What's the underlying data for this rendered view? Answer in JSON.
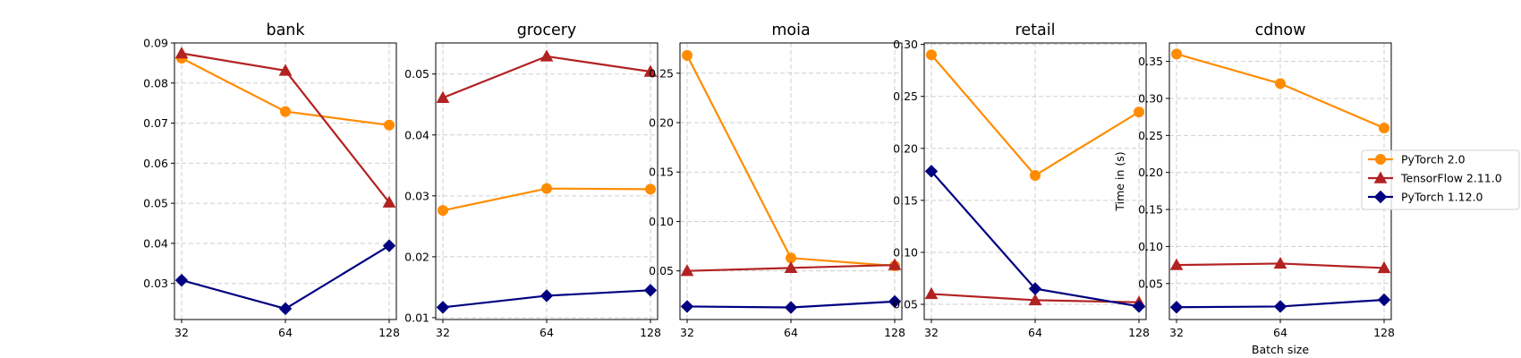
{
  "chart_data": {
    "type": "line",
    "x": [
      32,
      64,
      128
    ],
    "x_scale": "log2",
    "grid": true,
    "legend_placement": "right",
    "series_styles": [
      {
        "name": "PyTorch 2.0",
        "color": "#ff8c00",
        "marker": "circle"
      },
      {
        "name": "TensorFlow 2.11.0",
        "color": "#b22222",
        "marker": "triangle"
      },
      {
        "name": "PyTorch 1.12.0",
        "color": "#000080",
        "marker": "diamond"
      }
    ],
    "panels": [
      {
        "title": "bank",
        "xlabel": "",
        "ylabel": "",
        "ylim": [
          0.021,
          0.09
        ],
        "yticks": [
          0.03,
          0.04,
          0.05,
          0.06,
          0.07,
          0.08,
          0.09
        ],
        "ytick_labels": [
          "0.03",
          "0.04",
          "0.05",
          "0.06",
          "0.07",
          "0.08",
          "0.09"
        ],
        "series": [
          {
            "name": "PyTorch 2.0",
            "values": [
              0.0862,
              0.0729,
              0.0695
            ]
          },
          {
            "name": "TensorFlow 2.11.0",
            "values": [
              0.0874,
              0.0831,
              0.0502
            ]
          },
          {
            "name": "PyTorch 1.12.0",
            "values": [
              0.0308,
              0.0237,
              0.0394
            ]
          }
        ]
      },
      {
        "title": "grocery",
        "xlabel": "",
        "ylabel": "",
        "ylim": [
          0.0097,
          0.0551
        ],
        "yticks": [
          0.01,
          0.02,
          0.03,
          0.04,
          0.05
        ],
        "ytick_labels": [
          "0.01",
          "0.02",
          "0.03",
          "0.04",
          "0.05"
        ],
        "series": [
          {
            "name": "PyTorch 2.0",
            "values": [
              0.0276,
              0.0312,
              0.0311
            ]
          },
          {
            "name": "TensorFlow 2.11.0",
            "values": [
              0.0461,
              0.0529,
              0.0504
            ]
          },
          {
            "name": "PyTorch 1.12.0",
            "values": [
              0.0117,
              0.0136,
              0.0145
            ]
          }
        ]
      },
      {
        "title": "moia",
        "xlabel": "",
        "ylabel": "",
        "ylim": [
          0.0008,
          0.2806
        ],
        "yticks": [
          0.05,
          0.1,
          0.15,
          0.2,
          0.25
        ],
        "ytick_labels": [
          "0.05",
          "0.10",
          "0.15",
          "0.20",
          "0.25"
        ],
        "series": [
          {
            "name": "PyTorch 2.0",
            "values": [
              0.268,
              0.063,
              0.055
            ]
          },
          {
            "name": "TensorFlow 2.11.0",
            "values": [
              0.05,
              0.053,
              0.056
            ]
          },
          {
            "name": "PyTorch 1.12.0",
            "values": [
              0.014,
              0.013,
              0.019
            ]
          }
        ]
      },
      {
        "title": "retail",
        "xlabel": "",
        "ylabel": "",
        "ylim": [
          0.0354,
          0.3014
        ],
        "yticks": [
          0.05,
          0.1,
          0.15,
          0.2,
          0.25,
          0.3
        ],
        "ytick_labels": [
          "0.05",
          "0.10",
          "0.15",
          "0.20",
          "0.25",
          "0.30"
        ],
        "series": [
          {
            "name": "PyTorch 2.0",
            "values": [
              0.29,
              0.174,
              0.235
            ]
          },
          {
            "name": "TensorFlow 2.11.0",
            "values": [
              0.06,
              0.054,
              0.052
            ]
          },
          {
            "name": "PyTorch 1.12.0",
            "values": [
              0.178,
              0.065,
              0.048
            ]
          }
        ]
      },
      {
        "title": "cdnow",
        "xlabel": "Batch size",
        "ylabel": "Time in (s)",
        "ylim": [
          0.0014,
          0.3749
        ],
        "yticks": [
          0.05,
          0.1,
          0.15,
          0.2,
          0.25,
          0.3,
          0.35
        ],
        "ytick_labels": [
          "0.05",
          "0.10",
          "0.15",
          "0.20",
          "0.25",
          "0.30",
          "0.35"
        ],
        "series": [
          {
            "name": "PyTorch 2.0",
            "values": [
              0.36,
              0.32,
              0.26
            ]
          },
          {
            "name": "TensorFlow 2.11.0",
            "values": [
              0.075,
              0.077,
              0.071
            ]
          },
          {
            "name": "PyTorch 1.12.0",
            "values": [
              0.018,
              0.019,
              0.028
            ]
          }
        ]
      }
    ],
    "xtick_labels": [
      "32",
      "64",
      "128"
    ],
    "legend": [
      "PyTorch 2.0",
      "TensorFlow 2.11.0",
      "PyTorch 1.12.0"
    ]
  }
}
